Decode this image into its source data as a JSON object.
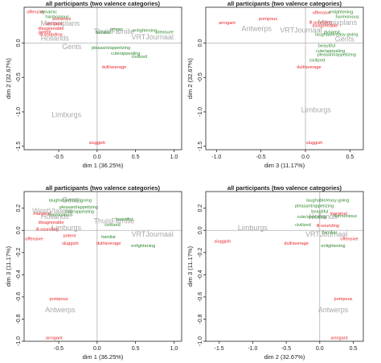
{
  "colors": {
    "negative": "#e8262a",
    "positive": "#2f8a2f",
    "group": "#a8a8a8",
    "axis": "#222222",
    "refline": "#b0b0b0"
  },
  "chart_data": [
    {
      "type": "scatter",
      "title": "all participants (two valence categories)",
      "xlabel": "dim 1 (36.25%)",
      "ylabel": "dim 2 (32.67%)",
      "xlim": [
        -0.95,
        1.1
      ],
      "ylim": [
        -1.55,
        0.52
      ],
      "xticks": [
        -0.5,
        0.0,
        0.5,
        1.0
      ],
      "xtick_labels": [
        "-0.5",
        "0.0",
        "0.5",
        "1.0"
      ],
      "yticks": [
        -1.5,
        -1.0,
        -0.5,
        0.0
      ],
      "ytick_labels": [
        "-1.5",
        "-1.0",
        "-0.5",
        "0.0"
      ],
      "groups": [
        {
          "label": "Marnixplans",
          "x": -0.48,
          "y": 0.28
        },
        {
          "label": "Hollands",
          "x": -0.55,
          "y": 0.06
        },
        {
          "label": "Gents",
          "x": -0.33,
          "y": -0.06
        },
        {
          "label": "ThuisFamilie",
          "x": 0.22,
          "y": 0.16
        },
        {
          "label": "VRTJournaal",
          "x": 0.72,
          "y": 0.08
        },
        {
          "label": "Limburgs",
          "x": -0.4,
          "y": -1.05
        }
      ],
      "negative": [
        {
          "label": "offensive",
          "x": -0.8,
          "y": 0.45
        },
        {
          "label": "pompous",
          "x": -0.46,
          "y": 0.35
        },
        {
          "label": "arrogant",
          "x": -0.56,
          "y": 0.28
        },
        {
          "label": "disagreeable",
          "x": -0.6,
          "y": 0.21
        },
        {
          "label": "potent",
          "x": -0.68,
          "y": 0.16
        },
        {
          "label": "ill-sounding",
          "x": -0.6,
          "y": 0.12
        },
        {
          "label": "dull/average",
          "x": 0.22,
          "y": -0.35
        },
        {
          "label": "sluggish",
          "x": 0.0,
          "y": -1.45
        }
      ],
      "positive": [
        {
          "label": "dynamic",
          "x": -0.63,
          "y": 0.45
        },
        {
          "label": "harmonious",
          "x": -0.52,
          "y": 0.38
        },
        {
          "label": "proper",
          "x": 0.25,
          "y": 0.2
        },
        {
          "label": "familiar",
          "x": 0.08,
          "y": 0.15
        },
        {
          "label": "enlightening",
          "x": 0.62,
          "y": 0.18
        },
        {
          "label": "pleasure",
          "x": 0.88,
          "y": 0.16
        },
        {
          "label": "pleasant/appetizing",
          "x": 0.18,
          "y": -0.07
        },
        {
          "label": "cute/appealing",
          "x": 0.37,
          "y": -0.15
        },
        {
          "label": "civilized",
          "x": 0.55,
          "y": -0.2
        }
      ]
    },
    {
      "type": "scatter",
      "title": "all participants (two valence categories)",
      "xlabel": "dim 3 (11.17%)",
      "ylabel": "dim 2 (32.67%)",
      "xlim": [
        -1.12,
        0.65
      ],
      "ylim": [
        -1.55,
        0.52
      ],
      "xticks": [
        -1.0,
        -0.5,
        0.0,
        0.5
      ],
      "xtick_labels": [
        "-1.0",
        "-0.5",
        "0.0",
        "0.5"
      ],
      "yticks": [
        -1.5,
        -1.0,
        -0.5,
        0.0
      ],
      "ytick_labels": [
        "-1.5",
        "-1.0",
        "-0.5",
        "0.0"
      ],
      "groups": [
        {
          "label": "Antwerps",
          "x": -0.55,
          "y": 0.2
        },
        {
          "label": "VRTJournaal",
          "x": -0.05,
          "y": 0.18
        },
        {
          "label": "Marnixplans",
          "x": 0.36,
          "y": 0.29
        },
        {
          "label": "Gents",
          "x": 0.44,
          "y": 0.05
        },
        {
          "label": "Limburgs",
          "x": 0.12,
          "y": -0.98
        }
      ],
      "negative": [
        {
          "label": "offensive",
          "x": 0.18,
          "y": 0.44
        },
        {
          "label": "pompous",
          "x": -0.42,
          "y": 0.35
        },
        {
          "label": "arrogant",
          "x": -0.88,
          "y": 0.29
        },
        {
          "label": "ill-sounding",
          "x": 0.17,
          "y": 0.3
        },
        {
          "label": "disagreeable",
          "x": 0.22,
          "y": 0.25
        },
        {
          "label": "dull/average",
          "x": 0.04,
          "y": -0.35
        },
        {
          "label": "sluggish",
          "x": 0.1,
          "y": -1.45
        }
      ],
      "positive": [
        {
          "label": "enlightening",
          "x": 0.4,
          "y": 0.45
        },
        {
          "label": "harmonious",
          "x": 0.47,
          "y": 0.38
        },
        {
          "label": "dynamic",
          "x": 0.3,
          "y": 0.16
        },
        {
          "label": "laughable/easy-going",
          "x": 0.35,
          "y": 0.12
        },
        {
          "label": "beautiful",
          "x": 0.24,
          "y": -0.04
        },
        {
          "label": "cute/appealing",
          "x": 0.28,
          "y": -0.12
        },
        {
          "label": "pleasant/appetizing",
          "x": 0.35,
          "y": -0.17
        },
        {
          "label": "civilized",
          "x": 0.13,
          "y": -0.25
        }
      ]
    },
    {
      "type": "scatter",
      "title": "all participants (two valence categories)",
      "xlabel": "dim 1 (36.25%)",
      "ylabel": "dim 3 (11.17%)",
      "xlim": [
        -0.95,
        1.1
      ],
      "ylim": [
        -1.0,
        0.35
      ],
      "xticks": [
        -0.5,
        0.0,
        0.5,
        1.0
      ],
      "xtick_labels": [
        "-0.5",
        "0.0",
        "0.5",
        "1.0"
      ],
      "yticks": [
        -1.0,
        -0.8,
        -0.6,
        -0.4,
        -0.2,
        0.0,
        0.2
      ],
      "ytick_labels": [
        "-1.0",
        "-0.8",
        "-0.6",
        "-0.4",
        "-0.2",
        "0.0",
        "0.2"
      ],
      "groups": [
        {
          "label": "Gents",
          "x": -0.33,
          "y": 0.27
        },
        {
          "label": "WestVlaams",
          "x": -0.58,
          "y": 0.17
        },
        {
          "label": "Hollands",
          "x": -0.55,
          "y": 0.12
        },
        {
          "label": "Limburgs",
          "x": -0.4,
          "y": 0.02
        },
        {
          "label": "ThuisFamilie",
          "x": 0.22,
          "y": 0.08
        },
        {
          "label": "VRTJournaal",
          "x": 0.72,
          "y": -0.04
        },
        {
          "label": "Antwerps",
          "x": -0.48,
          "y": -0.72
        }
      ],
      "negative": [
        {
          "label": "marginal",
          "x": -0.72,
          "y": 0.15
        },
        {
          "label": "disagreeable",
          "x": -0.6,
          "y": 0.07
        },
        {
          "label": "ill-sounding",
          "x": -0.65,
          "y": 0.01
        },
        {
          "label": "potent",
          "x": -0.36,
          "y": -0.05
        },
        {
          "label": "offensive",
          "x": -0.82,
          "y": -0.08
        },
        {
          "label": "sluggish",
          "x": -0.35,
          "y": -0.12
        },
        {
          "label": "dull/average",
          "x": 0.15,
          "y": -0.12
        },
        {
          "label": "pompous",
          "x": -0.5,
          "y": -0.62
        },
        {
          "label": "arrogant",
          "x": -0.56,
          "y": -0.97
        }
      ],
      "positive": [
        {
          "label": "laughable/easy-going",
          "x": -0.35,
          "y": 0.27
        },
        {
          "label": "pleasant/appetizing",
          "x": -0.24,
          "y": 0.21
        },
        {
          "label": "cute/appealing",
          "x": -0.23,
          "y": 0.17
        },
        {
          "label": "harmonious",
          "x": -0.47,
          "y": 0.14
        },
        {
          "label": "beautiful",
          "x": 0.35,
          "y": 0.1
        },
        {
          "label": "civilized",
          "x": 0.2,
          "y": 0.05
        },
        {
          "label": "familiar",
          "x": 0.15,
          "y": -0.06
        },
        {
          "label": "enlightening",
          "x": 0.6,
          "y": -0.14
        }
      ]
    },
    {
      "type": "scatter",
      "title": "all participants (two valence categories)",
      "xlabel": "dim 2 (32.67%)",
      "ylabel": "dim 3 (11.17%)",
      "xlim": [
        -1.7,
        0.65
      ],
      "ylim": [
        -1.0,
        0.35
      ],
      "xticks": [
        -1.5,
        -1.0,
        -0.5,
        0.0,
        0.5
      ],
      "xtick_labels": [
        "-1.5",
        "-1.0",
        "-0.5",
        "0.0",
        "0.5"
      ],
      "yticks": [
        -1.0,
        -0.8,
        -0.6,
        -0.4,
        -0.2,
        0.0,
        0.2
      ],
      "ytick_labels": [
        "-1.0",
        "-0.8",
        "-0.6",
        "-0.4",
        "-0.2",
        "0.0",
        "0.2"
      ],
      "groups": [
        {
          "label": "Limburgs",
          "x": -1.0,
          "y": 0.02
        },
        {
          "label": "Hollands",
          "x": 0.05,
          "y": 0.12
        },
        {
          "label": "VRTJournaal",
          "x": 0.1,
          "y": -0.04
        },
        {
          "label": "Antwerps",
          "x": 0.2,
          "y": -0.72
        }
      ],
      "negative": [
        {
          "label": "sluggish",
          "x": -1.45,
          "y": -0.1
        },
        {
          "label": "dull/average",
          "x": -0.35,
          "y": -0.12
        },
        {
          "label": "marginal",
          "x": 0.28,
          "y": 0.15
        },
        {
          "label": "ill-sounding",
          "x": 0.12,
          "y": 0.04
        },
        {
          "label": "offensive",
          "x": 0.44,
          "y": -0.08
        },
        {
          "label": "pompous",
          "x": 0.35,
          "y": -0.62
        },
        {
          "label": "arrogant",
          "x": 0.29,
          "y": -0.97
        }
      ],
      "positive": [
        {
          "label": "laughable/easy-going",
          "x": 0.12,
          "y": 0.27
        },
        {
          "label": "pleasant/appetizing",
          "x": -0.08,
          "y": 0.22
        },
        {
          "label": "beautiful",
          "x": 0.0,
          "y": 0.17
        },
        {
          "label": "cute/appealing",
          "x": -0.12,
          "y": 0.12
        },
        {
          "label": "harmonious",
          "x": 0.38,
          "y": 0.13
        },
        {
          "label": "civilized",
          "x": -0.25,
          "y": 0.05
        },
        {
          "label": "familiar",
          "x": 0.15,
          "y": -0.02
        },
        {
          "label": "enlightening",
          "x": 0.2,
          "y": -0.14
        }
      ]
    }
  ]
}
